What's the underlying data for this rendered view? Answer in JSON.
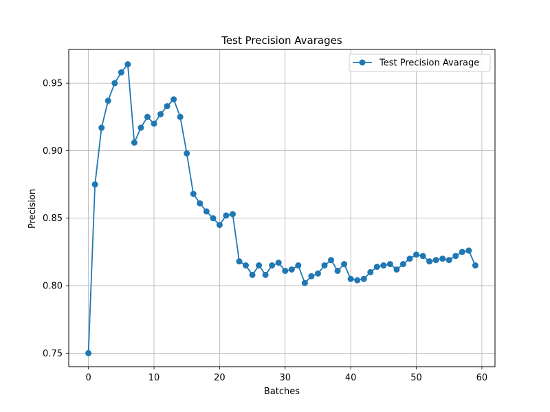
{
  "chart_data": {
    "type": "line",
    "title": "Test Precision Avarages",
    "xlabel": "Batches",
    "ylabel": "Precision",
    "xlim": [
      -3,
      62
    ],
    "ylim": [
      0.74,
      0.975
    ],
    "xticks": [
      0,
      10,
      20,
      30,
      40,
      50,
      60
    ],
    "xtick_labels": [
      "0",
      "10",
      "20",
      "30",
      "40",
      "50",
      "60"
    ],
    "yticks": [
      0.75,
      0.8,
      0.85,
      0.9,
      0.95
    ],
    "ytick_labels": [
      "0.75",
      "0.80",
      "0.85",
      "0.90",
      "0.95"
    ],
    "grid": true,
    "legend_position": "top-right",
    "series": [
      {
        "name": "Test Precision Avarage",
        "color": "#1f77b4",
        "marker": "circle",
        "x": [
          0,
          1,
          2,
          3,
          4,
          5,
          6,
          7,
          8,
          9,
          10,
          11,
          12,
          13,
          14,
          15,
          16,
          17,
          18,
          19,
          20,
          21,
          22,
          23,
          24,
          25,
          26,
          27,
          28,
          29,
          30,
          31,
          32,
          33,
          34,
          35,
          36,
          37,
          38,
          39,
          40,
          41,
          42,
          43,
          44,
          45,
          46,
          47,
          48,
          49,
          50,
          51,
          52,
          53,
          54,
          55,
          56,
          57,
          58,
          59
        ],
        "y": [
          0.75,
          0.875,
          0.917,
          0.937,
          0.95,
          0.958,
          0.964,
          0.906,
          0.917,
          0.925,
          0.92,
          0.927,
          0.933,
          0.938,
          0.925,
          0.898,
          0.868,
          0.861,
          0.855,
          0.85,
          0.845,
          0.852,
          0.853,
          0.818,
          0.815,
          0.808,
          0.815,
          0.808,
          0.815,
          0.817,
          0.811,
          0.812,
          0.815,
          0.802,
          0.807,
          0.809,
          0.815,
          0.819,
          0.811,
          0.816,
          0.805,
          0.804,
          0.805,
          0.81,
          0.814,
          0.815,
          0.816,
          0.812,
          0.816,
          0.82,
          0.823,
          0.822,
          0.818,
          0.819,
          0.82,
          0.819,
          0.822,
          0.825,
          0.826,
          0.815
        ]
      }
    ]
  }
}
